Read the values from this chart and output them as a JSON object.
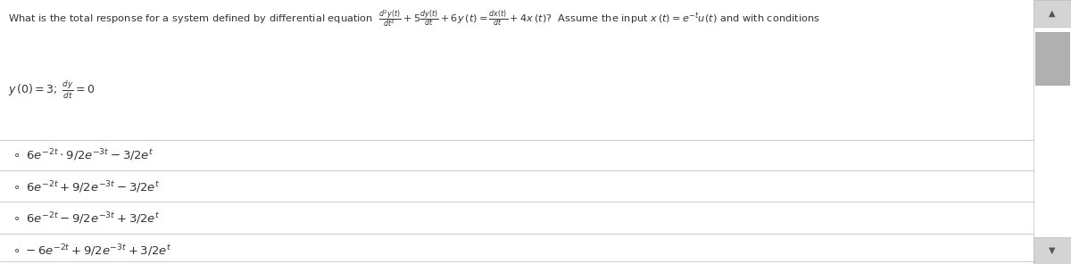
{
  "background_color": "#ffffff",
  "text_color": "#333333",
  "separator_color": "#d0d0d0",
  "fontsize_question": 8.5,
  "fontsize_options": 9.5,
  "question_line1_plain": "What is the total response for a system defined by differential equation",
  "question_line1_math": "$\\frac{d^2y(t)}{dt^2} + 5\\frac{dy(t)}{dt} + 6y\\,(t) = \\frac{dx(t)}{dt} + 4x\\,(t)$? Assume the input $x\\,(t) = e^{-t}u(t)$ and with conditions",
  "question_line2": "$y\\,(0) = 3;\\;\\frac{dy}{dt} = 0$",
  "options": [
    "$\\circ\\;\\;6e^{-2t} \\cdot 9/2e^{-3t} - 3/2e^{t}$",
    "$\\circ\\;\\;6e^{-2t} + 9/2e^{-3t} - 3/2e^{t}$",
    "$\\circ\\;\\;6e^{-2t} - 9/2e^{-3t} + 3/2e^{t}$",
    "$\\circ\\;-6e^{-2t} + 9/2e^{-3t} + 3/2e^{t}$"
  ],
  "scrollbar_bg": "#e8e8e8",
  "scrollbar_thumb": "#b0b0b0",
  "scrollbar_arrow_bg": "#d4d4d4"
}
